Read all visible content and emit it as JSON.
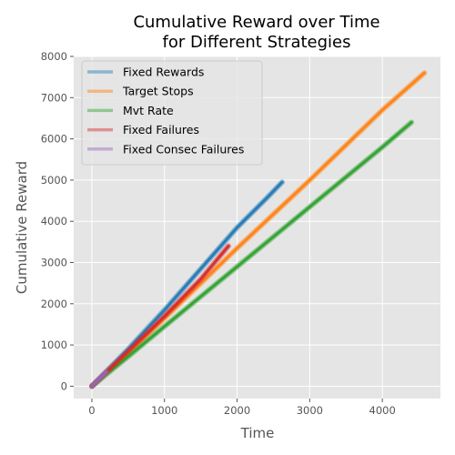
{
  "chart_data": {
    "type": "line",
    "title_lines": [
      "Cumulative Reward over Time",
      "for Different Strategies"
    ],
    "xlabel": "Time",
    "ylabel": "Cumulative Reward",
    "xlim": [
      -250,
      4800
    ],
    "ylim": [
      -300,
      8000
    ],
    "xticks": [
      0,
      1000,
      2000,
      3000,
      4000
    ],
    "yticks": [
      0,
      1000,
      2000,
      3000,
      4000,
      5000,
      6000,
      7000,
      8000
    ],
    "grid": true,
    "legend_position": "top-left",
    "series": [
      {
        "name": "Fixed Rewards",
        "color": "#1f77b4",
        "x": [
          0,
          500,
          1000,
          1500,
          2000,
          2400,
          2620
        ],
        "y": [
          0,
          900,
          1850,
          2850,
          3850,
          4550,
          4950
        ]
      },
      {
        "name": "Target Stops",
        "color": "#ff7f0e",
        "x": [
          0,
          500,
          1000,
          2000,
          3000,
          4000,
          4580
        ],
        "y": [
          0,
          800,
          1650,
          3350,
          5000,
          6700,
          7600
        ]
      },
      {
        "name": "Mvt Rate",
        "color": "#2ca02c",
        "x": [
          0,
          500,
          1000,
          2000,
          3000,
          4000,
          4400
        ],
        "y": [
          0,
          720,
          1450,
          2900,
          4350,
          5800,
          6400
        ]
      },
      {
        "name": "Fixed Failures",
        "color": "#d62728",
        "x": [
          0,
          500,
          1000,
          1500,
          1880
        ],
        "y": [
          0,
          850,
          1700,
          2600,
          3400
        ]
      },
      {
        "name": "Fixed Consec Failures",
        "color": "#9467bd",
        "x": [
          0,
          100,
          200
        ],
        "y": [
          0,
          170,
          340
        ]
      }
    ]
  }
}
